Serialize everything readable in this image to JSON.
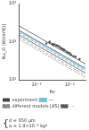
{
  "chart_data": {
    "type": "scatter",
    "xlabel": "Re",
    "ylabel": "Nu_D [W/(m²K)]",
    "log": true,
    "xlim": [
      0.0003,
      0.03
    ],
    "ylim": [
      10,
      1000
    ],
    "xticks": [
      {
        "value": 0.001,
        "label": "10⁻³"
      },
      {
        "value": 0.01,
        "label": "10⁻²"
      }
    ],
    "yticks": [
      {
        "value": 10,
        "label": "10¹"
      },
      {
        "value": 100,
        "label": "10²"
      },
      {
        "value": 1000,
        "label": "10³"
      }
    ],
    "grid": false,
    "legend": "bottom",
    "annotations": [
      "{",
      "d = 350 μm",
      "a = 1.9×10⁻³ kg²"
    ],
    "series": [
      {
        "name": "experiment",
        "type": "scatter",
        "color": "#444444",
        "marker": "square",
        "x": [
          0.002,
          0.0025,
          0.003,
          0.0035,
          0.004,
          0.0045,
          0.005,
          0.0055,
          0.006,
          0.007,
          0.008,
          0.009,
          0.011,
          0.013,
          0.015,
          0.02,
          0.0025,
          0.0032,
          0.0065,
          0.01
        ],
        "values": [
          90,
          95,
          88,
          85,
          80,
          78,
          72,
          68,
          65,
          60,
          55,
          52,
          46,
          42,
          40,
          35,
          100,
          82,
          63,
          50
        ]
      },
      {
        "name": "—",
        "type": "line",
        "color": "#6ec6e8",
        "line_style": "solid",
        "x": [
          0.0003,
          0.03
        ],
        "values": [
          190,
          19
        ]
      },
      {
        "name": "different models [45]",
        "type": "line",
        "color": "#888888",
        "line_style": "dashed",
        "x": [
          0.0003,
          0.03
        ],
        "values": [
          170,
          17
        ]
      },
      {
        "name": "different models [45]",
        "type": "line",
        "color": "#888888",
        "line_style": "dashed",
        "x": [
          0.0003,
          0.03
        ],
        "values": [
          130,
          13
        ]
      },
      {
        "name": "···",
        "type": "line",
        "color": "#555555",
        "line_style": "dotted",
        "x": [
          0.0003,
          0.03
        ],
        "values": [
          115,
          11.5
        ]
      },
      {
        "type": "line",
        "color": "#555555",
        "line_style": "solid",
        "x": [
          0.0003,
          0.03
        ],
        "values": [
          260,
          26
        ]
      },
      {
        "type": "line",
        "color": "#555555",
        "line_style": "solid",
        "x": [
          0.0003,
          0.03
        ],
        "values": [
          200,
          20
        ]
      },
      {
        "type": "line",
        "color": "#555555",
        "line_style": "solid",
        "x": [
          0.0003,
          0.03
        ],
        "values": [
          150,
          15
        ]
      }
    ]
  }
}
